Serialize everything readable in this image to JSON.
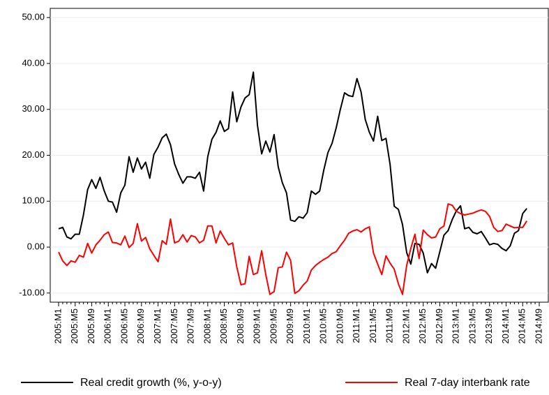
{
  "chart_data": {
    "type": "line",
    "categories": [
      "2005:M1",
      null,
      null,
      null,
      "2005:M5",
      null,
      null,
      null,
      "2005:M9",
      null,
      null,
      null,
      "2006:M1",
      null,
      null,
      null,
      "2006:M5",
      null,
      null,
      null,
      "2006:M9",
      null,
      null,
      null,
      "2007:M1",
      null,
      null,
      null,
      "2007:M5",
      null,
      null,
      null,
      "2007:M9",
      null,
      null,
      null,
      "2008:M1",
      null,
      null,
      null,
      "2008:M5",
      null,
      null,
      null,
      "2008:M9",
      null,
      null,
      null,
      "2009:M1",
      null,
      null,
      null,
      "2009:M5",
      null,
      null,
      null,
      "2009:M9",
      null,
      null,
      null,
      "2010:M1",
      null,
      null,
      null,
      "2010:M5",
      null,
      null,
      null,
      "2010:M9",
      null,
      null,
      null,
      "2011:M1",
      null,
      null,
      null,
      "2011:M5",
      null,
      null,
      null,
      "2011:M9",
      null,
      null,
      null,
      "2012:M1",
      null,
      null,
      null,
      "2012:M5",
      null,
      null,
      null,
      "2012:M9",
      null,
      null,
      null,
      "2013:M1",
      null,
      null,
      null,
      "2013:M5",
      null,
      null,
      null,
      "2013:M9",
      null,
      null,
      null,
      "2014:M1",
      null,
      null,
      null,
      "2014:M5",
      null,
      null,
      null,
      "2014:M9"
    ],
    "series": [
      {
        "name": "Real credit growth (%, y-o-y)",
        "color": "#000000",
        "values": [
          4.0,
          4.3,
          2.2,
          1.8,
          2.8,
          2.8,
          7,
          12.5,
          14.7,
          12.8,
          15.2,
          12.3,
          10,
          9.8,
          7.6,
          11.8,
          13.5,
          19.7,
          16.3,
          19.4,
          17,
          18.5,
          15,
          20.2,
          21.8,
          23.8,
          24.6,
          22.3,
          18.1,
          15.8,
          13.9,
          15.3,
          15.3,
          15,
          16.3,
          12.2,
          19.7,
          23.5,
          25,
          27.5,
          25.2,
          25.8,
          33.8,
          27.3,
          30.5,
          32.5,
          33.2,
          38.1,
          26.5,
          20.3,
          23.1,
          20.7,
          24.5,
          17.5,
          14,
          11.8,
          5.9,
          5.6,
          6.6,
          6.3,
          7.5,
          12.2,
          11.5,
          12.2,
          16.8,
          20.6,
          22.6,
          26,
          30,
          33.6,
          33,
          32.8,
          36.7,
          33.8,
          27.8,
          25,
          23.1,
          28.5,
          23.2,
          23.7,
          18,
          8.9,
          8.2,
          4.9,
          -1.2,
          -3.7,
          0.8,
          0.6,
          -1.3,
          -5.6,
          -3.6,
          -4.6,
          -1,
          2.6,
          3.6,
          6,
          7.9,
          9,
          4,
          4.3,
          3.2,
          2.9,
          3.4,
          2,
          0.5,
          0.8,
          0.6,
          -0.3,
          -0.8,
          0.3,
          3,
          3.6,
          7.3,
          8.4,
          null,
          null,
          null
        ]
      },
      {
        "name": "Real 7-day interbank rate",
        "color": "#ff0000",
        "values": [
          -1.1,
          -3,
          -4,
          -3,
          -3.3,
          -1.8,
          -2.2,
          0.8,
          -1.3,
          0.5,
          1.5,
          2.7,
          3.3,
          1,
          0.9,
          0.5,
          2.4,
          -0.1,
          0.8,
          5.1,
          1.3,
          2.1,
          -0.4,
          -1.8,
          -3.2,
          1.4,
          0.6,
          6.1,
          0.9,
          1.3,
          2.7,
          1.1,
          2.5,
          2.2,
          0.9,
          1.5,
          4.6,
          4.6,
          0.9,
          3.5,
          1.9,
          0.5,
          0.9,
          -4.3,
          -8.2,
          -8,
          -2,
          -6,
          -5.6,
          -0.8,
          -6,
          -10.3,
          -9.7,
          -4.5,
          -4.3,
          -1.1,
          -2.9,
          -10.1,
          -9.5,
          -8.3,
          -7.4,
          -5,
          -4,
          -3.3,
          -2.7,
          -2.2,
          -1.4,
          -1,
          0.3,
          1.5,
          3,
          3.5,
          3.8,
          3.3,
          4,
          4.4,
          -1.3,
          -3.7,
          -6,
          -1.9,
          -3.5,
          -4.8,
          -8,
          -10.3,
          -4,
          -0.3,
          2.8,
          -2.5,
          3.7,
          2.7,
          2,
          2.2,
          4,
          4.6,
          9.4,
          9.1,
          7.8,
          7.3,
          7,
          7.2,
          7.4,
          7.8,
          8.1,
          7.8,
          6.7,
          4.3,
          3.4,
          3.6,
          5,
          4.6,
          4.2,
          4.3,
          4.3,
          5.7,
          null,
          null,
          null
        ]
      }
    ],
    "ylim": [
      -12,
      52
    ],
    "yticks": [
      {
        "value": -10,
        "label": "-10.00"
      },
      {
        "value": 0,
        "label": "0.00"
      },
      {
        "value": 10,
        "label": "10.00"
      },
      {
        "value": 20,
        "label": "20.00"
      },
      {
        "value": 30,
        "label": "30.00"
      },
      {
        "value": 40,
        "label": "40.00"
      },
      {
        "value": 50,
        "label": "50.00"
      }
    ],
    "grid": true
  }
}
